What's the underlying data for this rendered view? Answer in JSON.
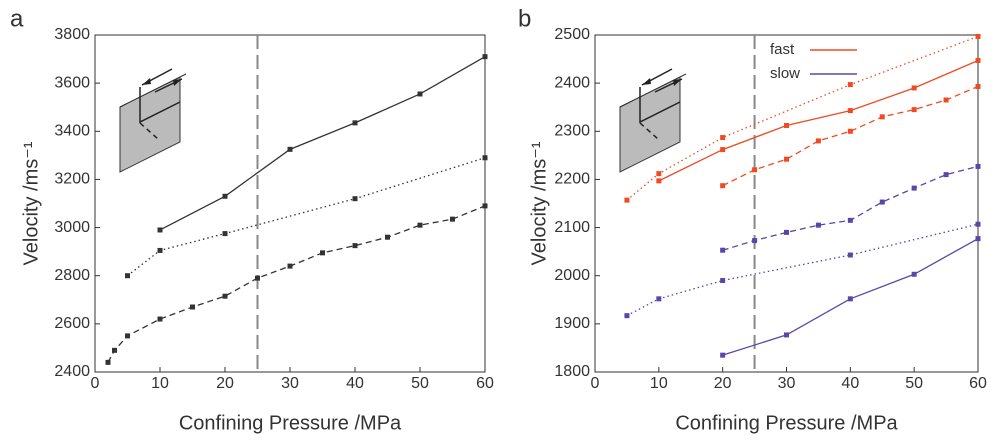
{
  "chart_data": [
    {
      "type": "line",
      "title": "a",
      "xlabel": "Confining Pressure /MPa",
      "ylabel": "Velocity /ms⁻¹",
      "xlim": [
        0,
        60
      ],
      "xticks": [
        0,
        10,
        20,
        30,
        40,
        50,
        60
      ],
      "ylim": [
        2400,
        3800
      ],
      "yticks": [
        2400,
        2600,
        2800,
        3000,
        3200,
        3400,
        3600,
        3800
      ],
      "vline": 25,
      "series": [
        {
          "color": "#333333",
          "dash": "solid",
          "x": [
            10,
            20,
            30,
            40,
            50,
            60
          ],
          "values": [
            2990,
            3130,
            3325,
            3435,
            3555,
            3710
          ]
        },
        {
          "color": "#333333",
          "dash": "dotted",
          "x": [
            5,
            10,
            20,
            40,
            60
          ],
          "values": [
            2800,
            2905,
            2975,
            3120,
            3290
          ]
        },
        {
          "color": "#333333",
          "dash": "dashed",
          "x": [
            2,
            3,
            5,
            10,
            15,
            20,
            25,
            30,
            35,
            40,
            45,
            50,
            55,
            60
          ],
          "values": [
            2440,
            2490,
            2550,
            2620,
            2670,
            2715,
            2790,
            2840,
            2895,
            2925,
            2960,
            3010,
            3035,
            3090
          ]
        }
      ]
    },
    {
      "type": "line",
      "title": "b",
      "xlabel": "Confining Pressure /MPa",
      "ylabel": "Velocity /ms⁻¹",
      "xlim": [
        0,
        60
      ],
      "xticks": [
        0,
        10,
        20,
        30,
        40,
        50,
        60
      ],
      "ylim": [
        1800,
        2500
      ],
      "yticks": [
        1800,
        1900,
        2000,
        2100,
        2200,
        2300,
        2400,
        2500
      ],
      "vline": 25,
      "series": [
        {
          "name": "fast",
          "color": "#f04a23",
          "dash": "solid",
          "x": [
            10,
            20,
            30,
            40,
            50,
            60
          ],
          "values": [
            2197,
            2262,
            2312,
            2343,
            2390,
            2447
          ]
        },
        {
          "color": "#f04a23",
          "dash": "dotted",
          "x": [
            5,
            10,
            20,
            40,
            60
          ],
          "values": [
            2157,
            2212,
            2287,
            2397,
            2497
          ]
        },
        {
          "color": "#f04a23",
          "dash": "dashed",
          "x": [
            20,
            25,
            30,
            35,
            40,
            45,
            50,
            55,
            60
          ],
          "values": [
            2187,
            2220,
            2242,
            2280,
            2300,
            2330,
            2345,
            2365,
            2393
          ]
        },
        {
          "name": "slow",
          "color": "#5b45a8",
          "dash": "solid",
          "x": [
            20,
            30,
            40,
            50,
            60
          ],
          "values": [
            1835,
            1877,
            1952,
            2003,
            2077
          ]
        },
        {
          "color": "#5b45a8",
          "dash": "dotted",
          "x": [
            5,
            10,
            20,
            40,
            60
          ],
          "values": [
            1917,
            1952,
            1990,
            2043,
            2107
          ]
        },
        {
          "color": "#5b45a8",
          "dash": "dashed",
          "x": [
            20,
            25,
            30,
            35,
            40,
            45,
            50,
            55,
            60
          ],
          "values": [
            2053,
            2073,
            2090,
            2105,
            2115,
            2153,
            2182,
            2210,
            2227
          ]
        }
      ]
    }
  ]
}
